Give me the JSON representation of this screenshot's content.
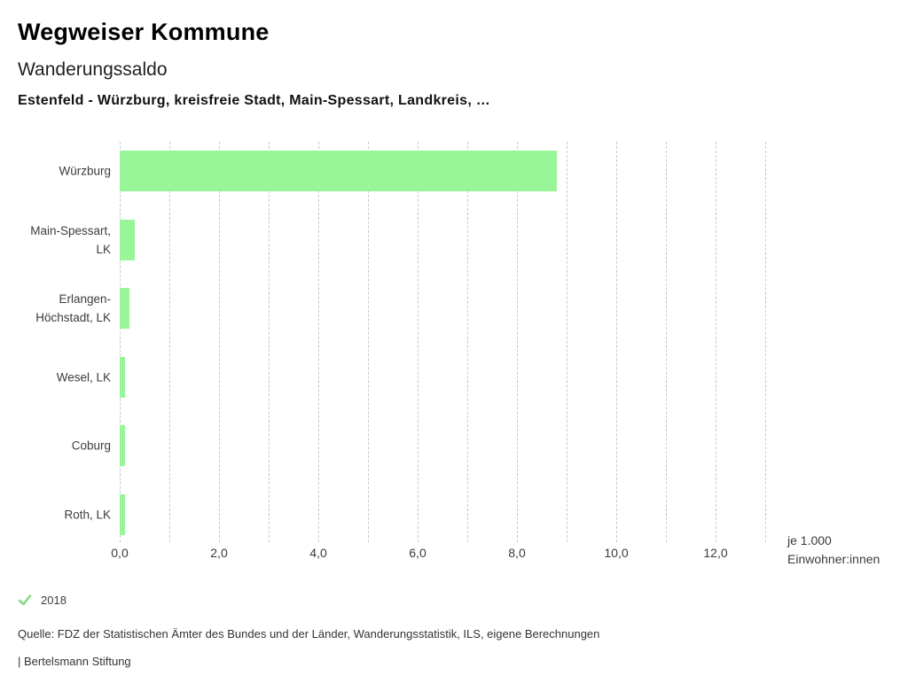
{
  "header": {
    "app_title": "Wegweiser Kommune",
    "chart_title": "Wanderungssaldo",
    "subtitle": "Estenfeld - Würzburg, kreisfreie Stadt, Main-Spessart, Landkreis, …"
  },
  "chart_data": {
    "type": "bar",
    "orientation": "horizontal",
    "title": "Wanderungssaldo",
    "categories": [
      "Würzburg",
      "Main-Spessart,\nLK",
      "Erlangen-\nHöchstadt, LK",
      "Wesel, LK",
      "Coburg",
      "Roth, LK"
    ],
    "series": [
      {
        "name": "2018",
        "values": [
          8.8,
          0.3,
          0.2,
          0.1,
          0.1,
          0.1
        ]
      }
    ],
    "xlim": [
      0,
      13
    ],
    "gridline_step": 1,
    "grid": true,
    "x_ticks": [
      0,
      2,
      4,
      6,
      8,
      10,
      12
    ],
    "x_tick_labels": [
      "0,0",
      "2,0",
      "4,0",
      "6,0",
      "8,0",
      "10,0",
      "12,0"
    ],
    "unit_label": [
      "je 1.000",
      "Einwohner:innen"
    ],
    "bar_color": "#98f598",
    "gridline_color": "#c8c8c8"
  },
  "legend": {
    "year": "2018",
    "check_color": "#85db85"
  },
  "footer": {
    "source": "Quelle: FDZ der Statistischen Ämter des Bundes und der Länder, Wanderungsstatistik, ILS, eigene Berechnungen",
    "brand": "| Bertelsmann Stiftung"
  }
}
